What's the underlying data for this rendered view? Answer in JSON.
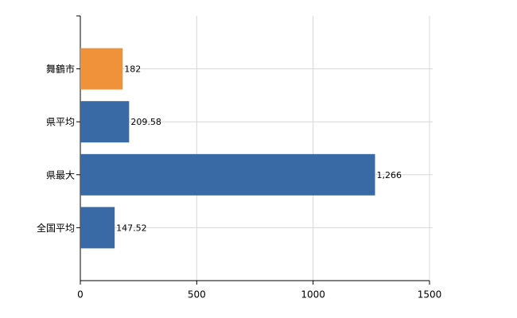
{
  "chart_data": {
    "type": "hbar",
    "categories": [
      "舞鶴市",
      "県平均",
      "県最大",
      "全国平均"
    ],
    "values": [
      182,
      209.58,
      1266,
      147.52
    ],
    "value_labels": [
      "182",
      "209.58",
      "1,266",
      "147.52"
    ],
    "colors": [
      "#f0923a",
      "#3a6aa6",
      "#3a6aa6",
      "#3a6aa6"
    ],
    "xlim": [
      0,
      1500
    ],
    "xticks": [
      0,
      500,
      1000,
      1500
    ],
    "grid": true
  }
}
